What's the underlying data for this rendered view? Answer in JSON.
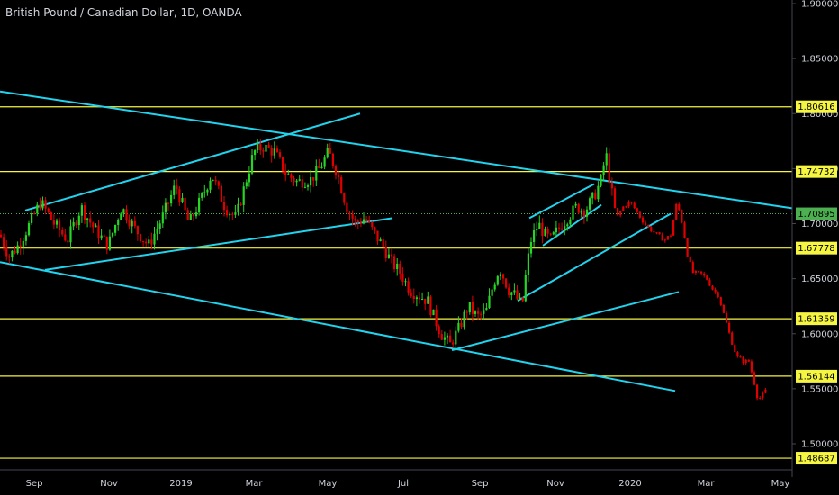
{
  "chart_data": {
    "type": "candlestick",
    "title": "British Pound / Canadian Dollar, 1D, OANDA",
    "ylim": [
      1.47,
      1.9
    ],
    "y_ticks": [
      1.9,
      1.85,
      1.8,
      1.75,
      1.7,
      1.65,
      1.6,
      1.55,
      1.5
    ],
    "y_tick_labels": [
      "1.90000",
      "1.85000",
      "1.80000",
      "1.75000",
      "1.70000",
      "1.65000",
      "1.60000",
      "1.55000",
      "1.50000"
    ],
    "x_ticks": [
      "Sep",
      "Nov",
      "2019",
      "Mar",
      "May",
      "Jul",
      "Sep",
      "Nov",
      "2020",
      "Mar",
      "May"
    ],
    "horizontal_levels": [
      {
        "value": 1.80616,
        "label": "1.80616"
      },
      {
        "value": 1.74732,
        "label": "1.74732"
      },
      {
        "value": 1.67778,
        "label": "1.67778"
      },
      {
        "value": 1.61359,
        "label": "1.61359"
      },
      {
        "value": 1.56144,
        "label": "1.56144"
      },
      {
        "value": 1.48687,
        "label": "1.48687"
      }
    ],
    "current_price": {
      "value": 1.70895,
      "label": "1.70895"
    },
    "price_path": [
      [
        0,
        1.69
      ],
      [
        10,
        1.67
      ],
      [
        20,
        1.68
      ],
      [
        30,
        1.695
      ],
      [
        45,
        1.72
      ],
      [
        60,
        1.7
      ],
      [
        75,
        1.685
      ],
      [
        90,
        1.715
      ],
      [
        105,
        1.695
      ],
      [
        120,
        1.68
      ],
      [
        135,
        1.715
      ],
      [
        150,
        1.695
      ],
      [
        165,
        1.68
      ],
      [
        180,
        1.705
      ],
      [
        195,
        1.735
      ],
      [
        210,
        1.7
      ],
      [
        225,
        1.725
      ],
      [
        235,
        1.745
      ],
      [
        250,
        1.715
      ],
      [
        262,
        1.705
      ],
      [
        272,
        1.735
      ],
      [
        282,
        1.765
      ],
      [
        292,
        1.77
      ],
      [
        305,
        1.765
      ],
      [
        318,
        1.745
      ],
      [
        330,
        1.738
      ],
      [
        345,
        1.74
      ],
      [
        355,
        1.75
      ],
      [
        365,
        1.765
      ],
      [
        375,
        1.745
      ],
      [
        385,
        1.715
      ],
      [
        395,
        1.7
      ],
      [
        405,
        1.705
      ],
      [
        415,
        1.692
      ],
      [
        425,
        1.68
      ],
      [
        435,
        1.665
      ],
      [
        445,
        1.655
      ],
      [
        455,
        1.64
      ],
      [
        465,
        1.635
      ],
      [
        475,
        1.63
      ],
      [
        482,
        1.615
      ],
      [
        490,
        1.6
      ],
      [
        500,
        1.59
      ],
      [
        510,
        1.605
      ],
      [
        520,
        1.625
      ],
      [
        530,
        1.615
      ],
      [
        540,
        1.62
      ],
      [
        548,
        1.645
      ],
      [
        555,
        1.66
      ],
      [
        565,
        1.64
      ],
      [
        572,
        1.635
      ],
      [
        580,
        1.625
      ],
      [
        585,
        1.66
      ],
      [
        590,
        1.685
      ],
      [
        598,
        1.7
      ],
      [
        605,
        1.69
      ],
      [
        612,
        1.685
      ],
      [
        620,
        1.695
      ],
      [
        630,
        1.705
      ],
      [
        640,
        1.715
      ],
      [
        650,
        1.712
      ],
      [
        660,
        1.725
      ],
      [
        668,
        1.74
      ],
      [
        673,
        1.765
      ],
      [
        678,
        1.735
      ],
      [
        685,
        1.705
      ],
      [
        692,
        1.715
      ],
      [
        700,
        1.72
      ],
      [
        708,
        1.71
      ],
      [
        716,
        1.7
      ],
      [
        722,
        1.695
      ],
      [
        730,
        1.69
      ],
      [
        738,
        1.685
      ],
      [
        745,
        1.69
      ],
      [
        752,
        1.72
      ],
      [
        758,
        1.7
      ],
      [
        764,
        1.67
      ],
      [
        770,
        1.655
      ],
      [
        778,
        1.655
      ],
      [
        785,
        1.65
      ],
      [
        792,
        1.64
      ],
      [
        798,
        1.635
      ],
      [
        805,
        1.615
      ],
      [
        812,
        1.595
      ],
      [
        818,
        1.58
      ],
      [
        825,
        1.575
      ],
      [
        832,
        1.575
      ],
      [
        838,
        1.555
      ],
      [
        842,
        1.54
      ],
      [
        848,
        1.545
      ],
      [
        852,
        1.55
      ]
    ],
    "trendlines": [
      {
        "name": "upper-channel",
        "from": [
          0,
          1.82
        ],
        "to": [
          880,
          1.714
        ]
      },
      {
        "name": "lower-channel",
        "from": [
          0,
          1.665
        ],
        "to": [
          750,
          1.548
        ]
      },
      {
        "name": "wedge-upper",
        "from": [
          28,
          1.712
        ],
        "to": [
          400,
          1.8
        ]
      },
      {
        "name": "wedge-lower",
        "from": [
          50,
          1.658
        ],
        "to": [
          436,
          1.705
        ]
      },
      {
        "name": "rising-short-upper",
        "from": [
          588,
          1.705
        ],
        "to": [
          660,
          1.736
        ]
      },
      {
        "name": "rising-short-lower",
        "from": [
          603,
          1.68
        ],
        "to": [
          668,
          1.717
        ]
      },
      {
        "name": "rising-long",
        "from": [
          575,
          1.63
        ],
        "to": [
          745,
          1.709
        ]
      },
      {
        "name": "rising-lower",
        "from": [
          502,
          1.585
        ],
        "to": [
          754,
          1.638
        ]
      }
    ],
    "plot_x_range": [
      0,
      880
    ],
    "grid": false,
    "colors": {
      "background": "#000000",
      "bullish_candle": "#26d526",
      "bearish_candle": "#e00000",
      "trendline": "#22d3ee",
      "level_line": "#f5f542",
      "current_price_line": "#4caf50",
      "axis_text": "#d1d4dc",
      "axis_line": "#434651"
    }
  }
}
